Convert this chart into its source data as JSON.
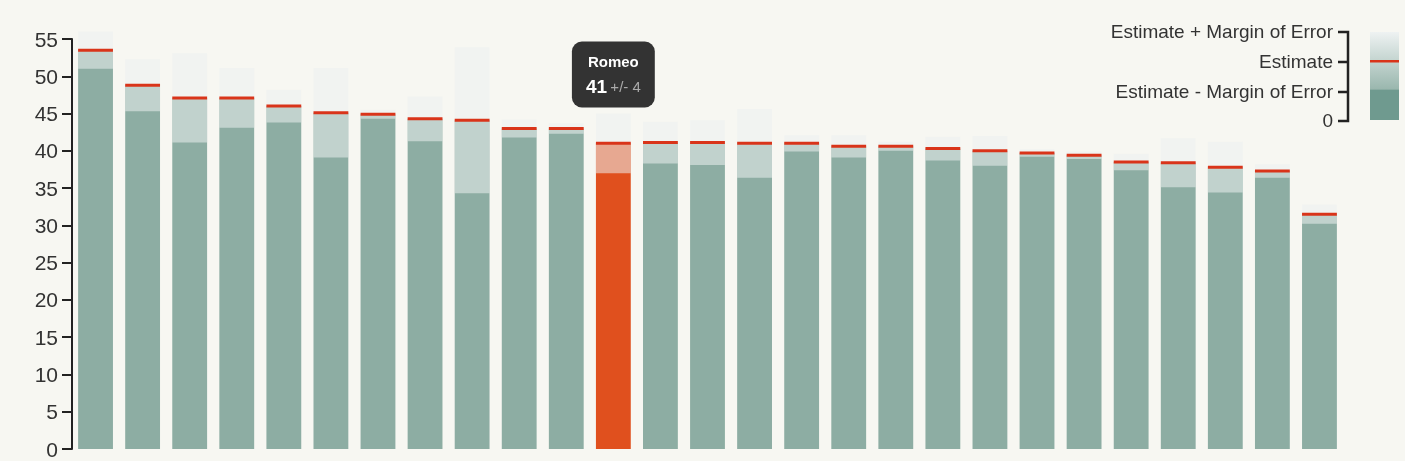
{
  "chart_data": {
    "type": "bar",
    "categories": [
      null,
      null,
      null,
      null,
      null,
      null,
      null,
      null,
      null,
      null,
      null,
      "Romeo",
      null,
      null,
      null,
      null,
      null,
      null,
      null,
      null,
      null,
      null,
      null,
      null,
      null,
      null,
      null
    ],
    "values": [
      53.5,
      48.8,
      47.1,
      47.1,
      46,
      45.1,
      44.9,
      44.3,
      44.1,
      43,
      43,
      41,
      41.1,
      41.1,
      41,
      41,
      40.6,
      40.6,
      40.3,
      40,
      39.7,
      39.4,
      38.5,
      38.4,
      37.8,
      37.3,
      31.5
    ],
    "errors": [
      2.5,
      3.5,
      6,
      4,
      2.2,
      6,
      0.6,
      3,
      9.8,
      1.2,
      0.7,
      4,
      2.8,
      3,
      4.6,
      1.1,
      1.5,
      0.6,
      1.6,
      2,
      0.5,
      0.5,
      1.1,
      3.3,
      3.4,
      0.9,
      1.3
    ],
    "value_labels": [
      null,
      null,
      null,
      null,
      null,
      null,
      null,
      null,
      null,
      null,
      null,
      "41 +/- 4",
      null,
      null,
      null,
      null,
      null,
      null,
      null,
      null,
      null,
      null,
      null,
      null,
      null,
      null,
      null
    ],
    "colors": [
      "#8dada3",
      "#8dada3",
      "#8dada3",
      "#8dada3",
      "#8dada3",
      "#8dada3",
      "#8dada3",
      "#8dada3",
      "#8dada3",
      "#8dada3",
      "#8dada3",
      "#e0501e",
      "#8dada3",
      "#8dada3",
      "#8dada3",
      "#8dada3",
      "#8dada3",
      "#8dada3",
      "#8dada3",
      "#8dada3",
      "#8dada3",
      "#8dada3",
      "#8dada3",
      "#8dada3",
      "#8dada3",
      "#8dada3",
      "#8dada3"
    ],
    "ylim": [
      0,
      55
    ],
    "yticks": [
      0,
      5,
      10,
      15,
      20,
      25,
      30,
      35,
      40,
      45,
      50,
      55
    ],
    "tick_labels": "y",
    "grid": false,
    "annotations": [
      "Estimate + Margin of Error",
      "Estimate",
      "Estimate - Margin of Error",
      "0"
    ]
  }
}
